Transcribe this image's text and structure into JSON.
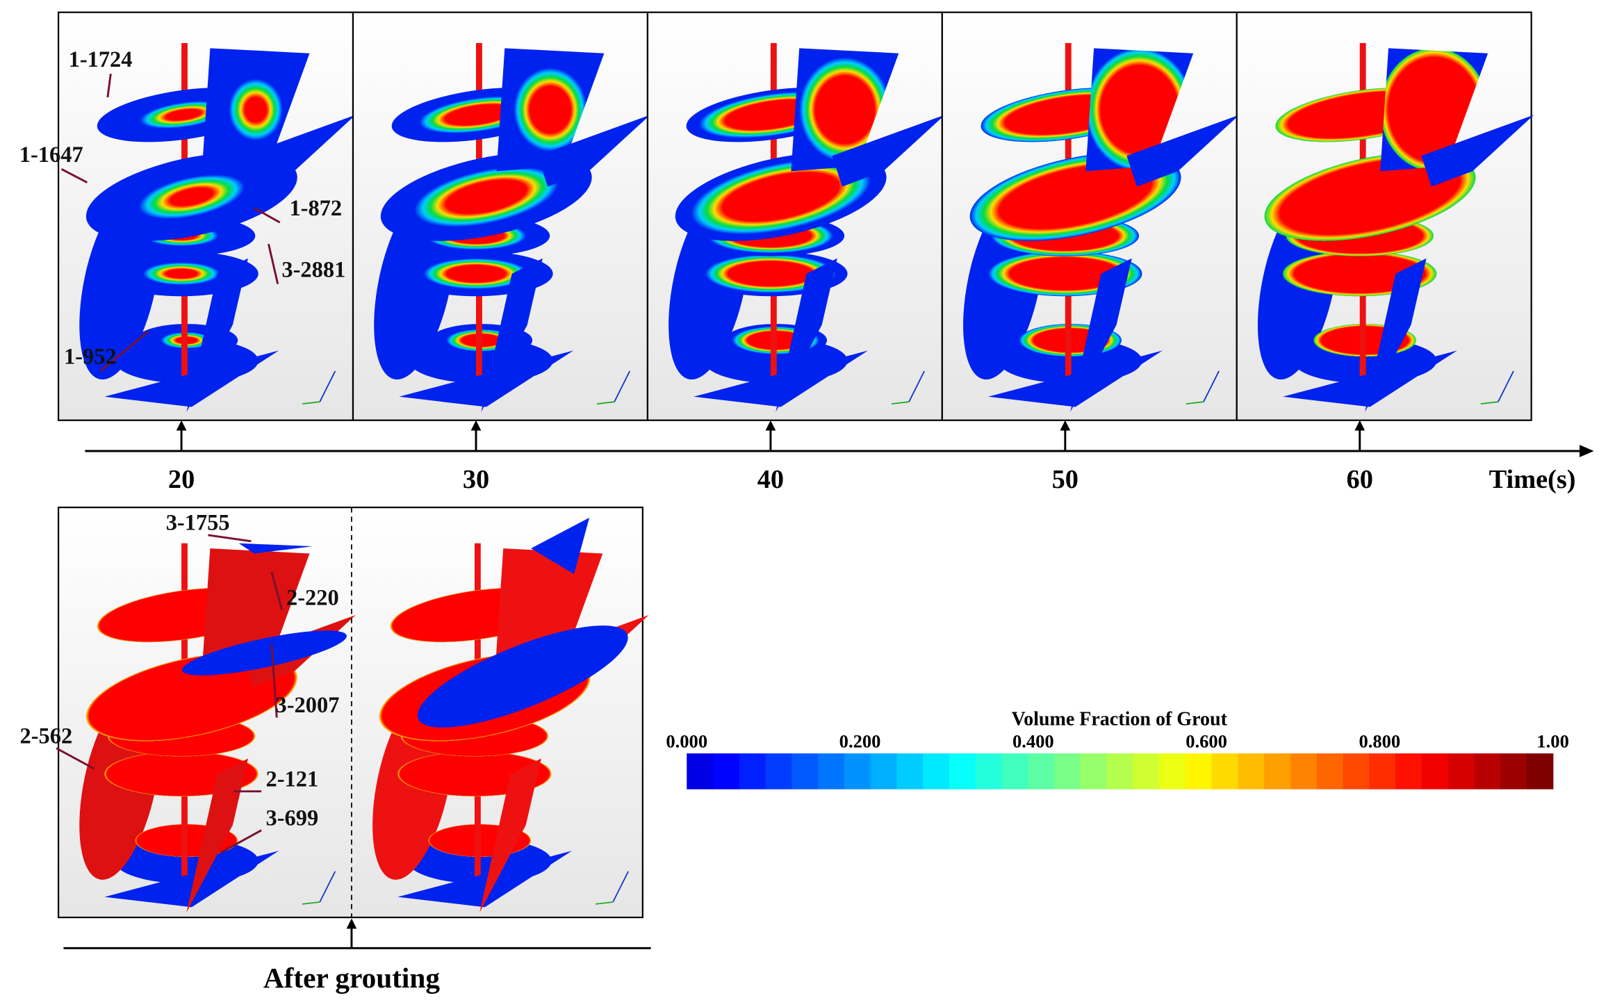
{
  "timeline": {
    "ticks": [
      "20",
      "30",
      "40",
      "50",
      "60"
    ],
    "label": "Time(s)"
  },
  "first_panel_labels": [
    "1-1724",
    "1-1647",
    "1-872",
    "3-2881",
    "1-952"
  ],
  "after_grouting": {
    "label": "After grouting",
    "labels": [
      "3-1755",
      "2-220",
      "3-2007",
      "2-562",
      "2-121",
      "3-699"
    ]
  },
  "colorbar": {
    "title": "Volume Fraction of Grout",
    "ticks": [
      "0.000",
      "0.200",
      "0.400",
      "0.600",
      "0.800",
      "1.00"
    ]
  }
}
